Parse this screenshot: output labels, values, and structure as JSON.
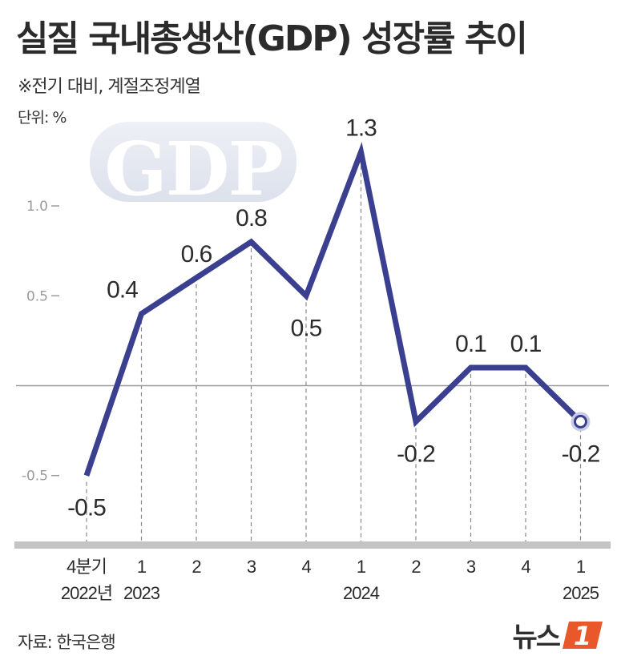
{
  "title": "실질 국내총생산(GDP) 성장률 추이",
  "note": "※전기 대비, 계절조정계열",
  "unit_label": "단위: %",
  "source": "자료: 한국은행",
  "logo": {
    "text": "뉴스",
    "mark": "1"
  },
  "watermark": "GDP",
  "colors": {
    "line": "#3a3f8f",
    "grid": "#888888",
    "baseline": "#9a9a9a",
    "text": "#2b2b2b"
  },
  "chart_data": {
    "type": "line",
    "categories": [
      "4분기",
      "1",
      "2",
      "3",
      "4",
      "1",
      "2",
      "3",
      "4",
      "1"
    ],
    "year_labels": [
      {
        "index": 0,
        "label": "2022년"
      },
      {
        "index": 1,
        "label": "2023"
      },
      {
        "index": 5,
        "label": "2024"
      },
      {
        "index": 9,
        "label": "2025"
      }
    ],
    "values": [
      -0.5,
      0.4,
      0.6,
      0.8,
      0.5,
      1.3,
      -0.2,
      0.1,
      0.1,
      -0.2
    ],
    "data_labels": [
      "-0.5",
      "0.4",
      "0.6",
      "0.8",
      "0.5",
      "1.3",
      "-0.2",
      "0.1",
      "0.1",
      "-0.2"
    ],
    "y_ticks": [
      {
        "value": 1.0,
        "label": "1.0"
      },
      {
        "value": 0.5,
        "label": "0.5"
      },
      {
        "value": -0.5,
        "label": "-0.5"
      }
    ],
    "ylim": [
      -0.9,
      1.35
    ],
    "grid": false
  }
}
